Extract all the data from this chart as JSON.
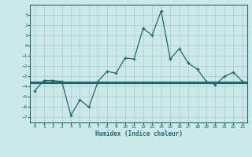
{
  "x": [
    0,
    1,
    2,
    3,
    4,
    5,
    6,
    7,
    8,
    9,
    10,
    11,
    12,
    13,
    14,
    15,
    16,
    17,
    18,
    19,
    20,
    21,
    22,
    23
  ],
  "y_line": [
    -4.4,
    -3.4,
    -3.4,
    -3.5,
    -6.8,
    -5.3,
    -6.0,
    -3.5,
    -2.5,
    -2.7,
    -1.2,
    -1.3,
    1.7,
    1.0,
    3.4,
    -1.3,
    -0.3,
    -1.7,
    -2.3,
    -3.5,
    -3.8,
    -3.0,
    -2.6,
    -3.5
  ],
  "hlines": [
    -3.5,
    -3.6,
    -3.7
  ],
  "xlim": [
    -0.5,
    23.5
  ],
  "ylim": [
    -7.5,
    4.0
  ],
  "yticks": [
    3,
    2,
    1,
    0,
    -1,
    -2,
    -3,
    -4,
    -5,
    -6,
    -7
  ],
  "xticks": [
    0,
    1,
    2,
    3,
    4,
    5,
    6,
    7,
    8,
    9,
    10,
    11,
    12,
    13,
    14,
    15,
    16,
    17,
    18,
    19,
    20,
    21,
    22,
    23
  ],
  "xlabel": "Humidex (Indice chaleur)",
  "line_color": "#1a6b6b",
  "bg_color": "#cce8e8",
  "grid_color": "#a8cccc"
}
